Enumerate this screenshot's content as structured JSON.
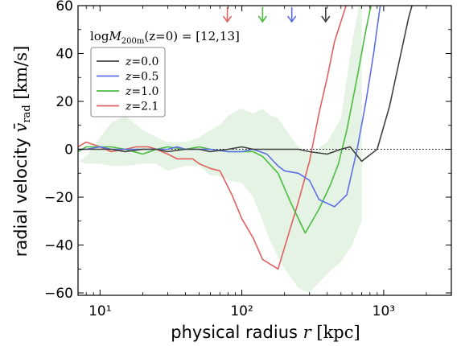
{
  "chart_data": {
    "type": "line",
    "xlabel_text": "physical radius",
    "xlabel_var": "r",
    "xlabel_unit": "[kpc]",
    "ylabel_text": "radial velocity",
    "ylabel_var": "v̄",
    "ylabel_sub": "rad",
    "ylabel_unit": "[km/s]",
    "x_scale": "log",
    "xlim": [
      7,
      3000
    ],
    "ylim": [
      -61,
      60
    ],
    "x_ticks": [
      10,
      100,
      1000
    ],
    "x_tick_labels": [
      "10¹",
      "10²",
      "10³"
    ],
    "y_ticks": [
      -60,
      -40,
      -20,
      0,
      20,
      40,
      60
    ],
    "y_tick_labels": [
      "−60",
      "−40",
      "−20",
      "0",
      "20",
      "40",
      "60"
    ],
    "annotation": {
      "prefix": "log",
      "var": "M",
      "sub": "200m",
      "suffix": "(z=0) = [12,13]"
    },
    "legend_position": "upper-left",
    "zero_line": true,
    "band": {
      "color": "#2ca02c",
      "upper": [
        [
          7,
          -5
        ],
        [
          8,
          -3
        ],
        [
          10,
          5
        ],
        [
          12,
          11
        ],
        [
          15,
          14
        ],
        [
          20,
          8
        ],
        [
          25,
          5
        ],
        [
          30,
          3
        ],
        [
          40,
          3
        ],
        [
          50,
          5
        ],
        [
          60,
          8
        ],
        [
          70,
          10
        ],
        [
          80,
          14
        ],
        [
          100,
          17
        ],
        [
          120,
          15
        ],
        [
          140,
          17
        ],
        [
          160,
          14
        ],
        [
          180,
          13
        ],
        [
          200,
          9
        ],
        [
          250,
          1
        ],
        [
          300,
          -2
        ],
        [
          400,
          3
        ],
        [
          500,
          13
        ],
        [
          600,
          45
        ],
        [
          700,
          66
        ]
      ],
      "lower": [
        [
          700,
          -30
        ],
        [
          600,
          -40
        ],
        [
          500,
          -47
        ],
        [
          400,
          -52
        ],
        [
          300,
          -60
        ],
        [
          250,
          -58
        ],
        [
          200,
          -50
        ],
        [
          180,
          -45
        ],
        [
          160,
          -39
        ],
        [
          140,
          -30
        ],
        [
          120,
          -20
        ],
        [
          100,
          -14
        ],
        [
          80,
          -13
        ],
        [
          70,
          -11
        ],
        [
          60,
          -11
        ],
        [
          50,
          -7
        ],
        [
          40,
          -7
        ],
        [
          30,
          -9
        ],
        [
          25,
          -6
        ],
        [
          20,
          -6
        ],
        [
          15,
          -7
        ],
        [
          12,
          -7
        ],
        [
          10,
          -6
        ],
        [
          8,
          -6
        ],
        [
          7,
          -5
        ]
      ]
    },
    "series": [
      {
        "name": "z=0.0",
        "color": "#404040",
        "arrow_x": 390,
        "points": [
          [
            7,
            0
          ],
          [
            8,
            0
          ],
          [
            10,
            0
          ],
          [
            12,
            0
          ],
          [
            15,
            -1
          ],
          [
            20,
            0
          ],
          [
            25,
            0
          ],
          [
            30,
            -1
          ],
          [
            40,
            0
          ],
          [
            50,
            0
          ],
          [
            60,
            -1
          ],
          [
            80,
            0
          ],
          [
            100,
            1
          ],
          [
            120,
            0
          ],
          [
            150,
            0
          ],
          [
            200,
            0
          ],
          [
            250,
            0
          ],
          [
            300,
            -1
          ],
          [
            400,
            -2
          ],
          [
            500,
            0
          ],
          [
            580,
            1
          ],
          [
            700,
            -5
          ],
          [
            900,
            0
          ],
          [
            1100,
            18
          ],
          [
            1300,
            38
          ],
          [
            1500,
            55
          ],
          [
            1600,
            61
          ]
        ]
      },
      {
        "name": "z=0.5",
        "color": "#5d6fe8",
        "arrow_x": 225,
        "points": [
          [
            7,
            0
          ],
          [
            8,
            0
          ],
          [
            10,
            1
          ],
          [
            12,
            0
          ],
          [
            15,
            0
          ],
          [
            20,
            0
          ],
          [
            25,
            0
          ],
          [
            30,
            0
          ],
          [
            35,
            1
          ],
          [
            40,
            0
          ],
          [
            50,
            0
          ],
          [
            60,
            0
          ],
          [
            80,
            -1
          ],
          [
            100,
            -1
          ],
          [
            120,
            0
          ],
          [
            150,
            -2
          ],
          [
            180,
            -7
          ],
          [
            200,
            -9
          ],
          [
            250,
            -10
          ],
          [
            300,
            -13
          ],
          [
            350,
            -21
          ],
          [
            450,
            -24
          ],
          [
            550,
            -19
          ],
          [
            650,
            0
          ],
          [
            750,
            20
          ],
          [
            850,
            40
          ],
          [
            950,
            61
          ]
        ]
      },
      {
        "name": "z=1.0",
        "color": "#4cbb42",
        "arrow_x": 140,
        "points": [
          [
            7,
            -1
          ],
          [
            8,
            1
          ],
          [
            10,
            1
          ],
          [
            12,
            1
          ],
          [
            15,
            0
          ],
          [
            20,
            -2
          ],
          [
            25,
            0
          ],
          [
            30,
            1
          ],
          [
            40,
            0
          ],
          [
            50,
            1
          ],
          [
            60,
            0
          ],
          [
            80,
            -1
          ],
          [
            100,
            -1
          ],
          [
            120,
            -1
          ],
          [
            140,
            -3
          ],
          [
            180,
            -10
          ],
          [
            220,
            -22
          ],
          [
            280,
            -35
          ],
          [
            350,
            -25
          ],
          [
            420,
            -15
          ],
          [
            480,
            -6
          ],
          [
            550,
            8
          ],
          [
            650,
            30
          ],
          [
            750,
            50
          ],
          [
            820,
            61
          ]
        ]
      },
      {
        "name": "z=2.1",
        "color": "#e06060",
        "arrow_x": 79,
        "points": [
          [
            7,
            1
          ],
          [
            8,
            3
          ],
          [
            10,
            1
          ],
          [
            12,
            -1
          ],
          [
            15,
            0
          ],
          [
            18,
            1
          ],
          [
            22,
            1
          ],
          [
            25,
            0
          ],
          [
            30,
            -2
          ],
          [
            35,
            -4
          ],
          [
            45,
            -4
          ],
          [
            50,
            -6
          ],
          [
            60,
            -8
          ],
          [
            70,
            -9
          ],
          [
            85,
            -19
          ],
          [
            100,
            -29
          ],
          [
            120,
            -37
          ],
          [
            140,
            -46
          ],
          [
            180,
            -50
          ],
          [
            200,
            -41
          ],
          [
            250,
            -22
          ],
          [
            300,
            -5
          ],
          [
            350,
            15
          ],
          [
            400,
            30
          ],
          [
            450,
            45
          ],
          [
            550,
            61
          ]
        ]
      }
    ]
  }
}
